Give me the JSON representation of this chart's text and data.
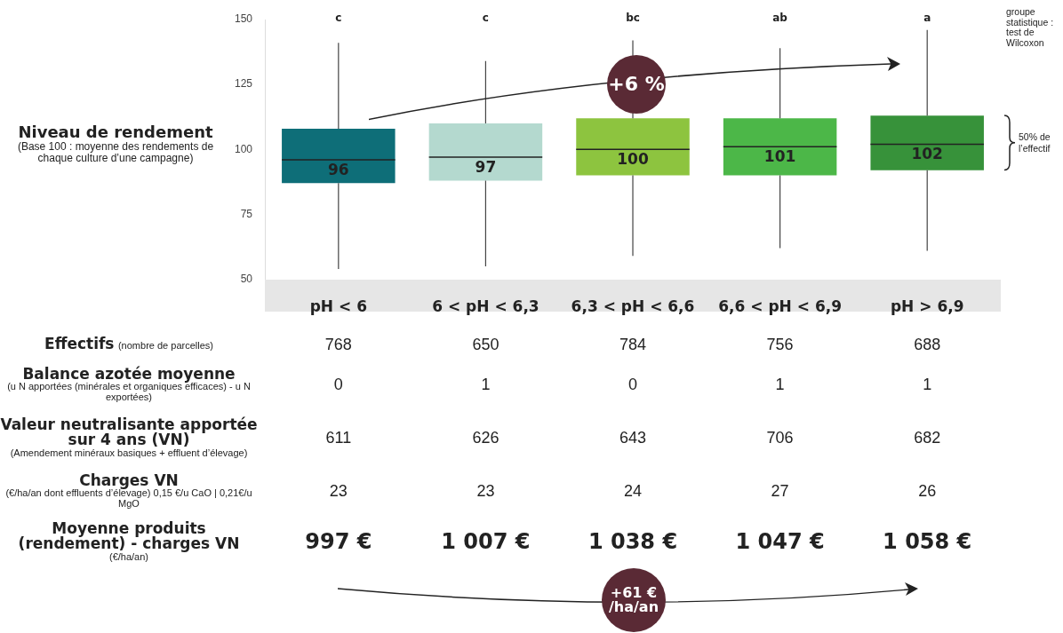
{
  "chart_data": {
    "type": "box",
    "ylabel": "Niveau de rendement\n(Base 100 : moyenne des rendements de chaque culture d’une campagne)",
    "categories": [
      "pH < 6",
      "6 < pH < 6,3",
      "6,3 < pH < 6,6",
      "6,6 < pH < 6,9",
      "pH > 6,9"
    ],
    "colors": [
      "#0e6e78",
      "#b4d9cf",
      "#8dc43f",
      "#4cb748",
      "#37923a"
    ],
    "boxes": [
      {
        "low": 54,
        "q1": 87,
        "median": 96,
        "q3": 108,
        "high": 141
      },
      {
        "low": 55,
        "q1": 88,
        "median": 97,
        "q3": 110,
        "high": 134
      },
      {
        "low": 59,
        "q1": 90,
        "median": 100,
        "q3": 112,
        "high": 142
      },
      {
        "low": 62,
        "q1": 90,
        "median": 101,
        "q3": 112,
        "high": 139
      },
      {
        "low": 61,
        "q1": 92,
        "median": 102,
        "q3": 113,
        "high": 146
      }
    ],
    "ylim": [
      50,
      150
    ],
    "yticks": [
      50,
      75,
      100,
      125,
      150
    ],
    "grid": false,
    "legend": false,
    "annotations": [
      {
        "text": "96",
        "x": "pH < 6",
        "y": 96
      },
      {
        "text": "97",
        "x": "6 < pH < 6,3",
        "y": 97
      },
      {
        "text": "100",
        "x": "6,3 < pH < 6,6",
        "y": 100
      },
      {
        "text": "101",
        "x": "6,6 < pH < 6,9",
        "y": 101
      },
      {
        "text": "102",
        "x": "pH > 6,9",
        "y": 102
      },
      "groupe statistique :\ntest de Wilcoxon",
      "50% de\nl’effectif",
      "+6 %",
      "+61 €\n/ha/an",
      "c",
      "c",
      "bc",
      "ab",
      "a",
      "Effectifs\n(nombre de parcelles)",
      "768",
      "650",
      "784",
      "756",
      "688",
      "Balance azotée moyenne\n(u N apportées (minérales et organiques efficaces) - u N exportées)",
      "0",
      "1",
      "0",
      "1",
      "1",
      "Valeur neutralisante apportée sur 4 ans (VN)\n(Amendement minéraux basiques + effluent d’élevage)",
      "611",
      "626",
      "643",
      "706",
      "682",
      "Charges VN\n(€/ha/an dont effluents d’élevage) 0,15 €/u CaO | 0,21€/u MgO",
      "23",
      "23",
      "24",
      "27",
      "26",
      "Moyenne produits (rendement) - charges VN\n(€/ha/an)",
      "997 €",
      "1 007 €",
      "1 038 €",
      "1 047 €",
      "1 058 €"
    ]
  }
}
